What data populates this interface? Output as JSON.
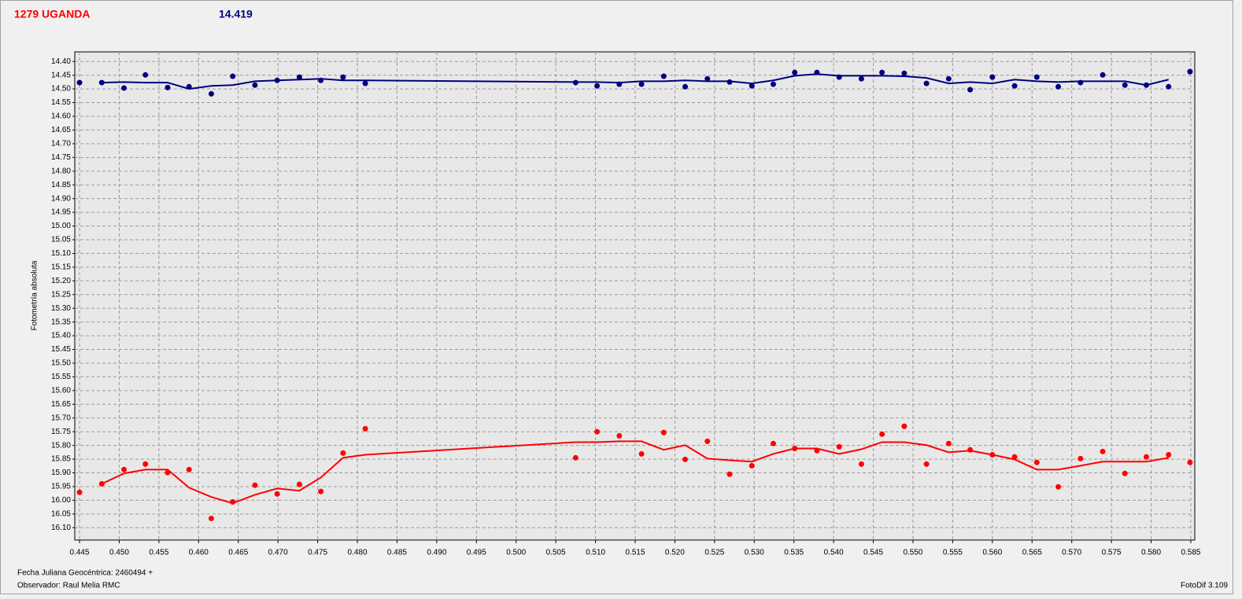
{
  "chart_data": {
    "type": "scatter",
    "title": "1279 UGANDA",
    "subtitle": "14.419",
    "y_label": "Fotometría absoluta",
    "x_label": "Fecha Juliana Geocéntrica: 2460494 +",
    "observer": "Observador: Raul Melia RMC",
    "software": "FotoDif 3.109",
    "y_inverted": true,
    "grid": true,
    "xlim": [
      0.4444,
      0.5855
    ],
    "ylim": [
      14.365,
      16.145
    ],
    "xticks": [
      0.445,
      {
        "value": 0.45,
        "label": "0.450"
      },
      0.455,
      {
        "value": 0.46,
        "label": "0.460"
      },
      0.465,
      {
        "value": 0.47,
        "label": "0.470"
      },
      0.475,
      {
        "value": 0.48,
        "label": "0.480"
      },
      0.485,
      {
        "value": 0.49,
        "label": "0.490"
      },
      0.495,
      {
        "value": 0.5,
        "label": "0.500"
      },
      0.505,
      {
        "value": 0.51,
        "label": "0.510"
      },
      0.515,
      {
        "value": 0.52,
        "label": "0.520"
      },
      0.525,
      {
        "value": 0.53,
        "label": "0.530"
      },
      0.535,
      {
        "value": 0.54,
        "label": "0.540"
      },
      0.545,
      {
        "value": 0.55,
        "label": "0.550"
      },
      0.555,
      {
        "value": 0.56,
        "label": "0.560"
      },
      0.565,
      {
        "value": 0.57,
        "label": "0.570"
      },
      0.575,
      {
        "value": 0.58,
        "label": "0.580"
      },
      0.585
    ],
    "yticks": [
      {
        "value": 14.4,
        "label": "14.40"
      },
      14.45,
      {
        "value": 14.5,
        "label": "14.50"
      },
      14.55,
      {
        "value": 14.6,
        "label": "14.60"
      },
      14.65,
      {
        "value": 14.7,
        "label": "14.70"
      },
      14.75,
      {
        "value": 14.8,
        "label": "14.80"
      },
      14.85,
      {
        "value": 14.9,
        "label": "14.90"
      },
      14.95,
      {
        "value": 15.0,
        "label": "15.00"
      },
      15.05,
      {
        "value": 15.1,
        "label": "15.10"
      },
      15.15,
      {
        "value": 15.2,
        "label": "15.20"
      },
      15.25,
      {
        "value": 15.3,
        "label": "15.30"
      },
      15.35,
      {
        "value": 15.4,
        "label": "15.40"
      },
      15.45,
      {
        "value": 15.5,
        "label": "15.50"
      },
      15.55,
      {
        "value": 15.6,
        "label": "15.60"
      },
      15.65,
      {
        "value": 15.7,
        "label": "15.70"
      },
      15.75,
      {
        "value": 15.8,
        "label": "15.80"
      },
      15.85,
      {
        "value": 15.9,
        "label": "15.90"
      },
      15.95,
      {
        "value": 16.0,
        "label": "16.00"
      },
      16.05,
      {
        "value": 16.1,
        "label": "16.10"
      }
    ],
    "x": [
      0.445,
      0.4478,
      0.4506,
      0.4533,
      0.4561,
      0.4588,
      0.4616,
      0.4643,
      0.4671,
      0.4699,
      0.4727,
      0.4754,
      0.4782,
      0.481,
      0.5075,
      0.5102,
      0.513,
      0.5158,
      0.5186,
      0.5213,
      0.5241,
      0.5269,
      0.5297,
      0.5324,
      0.5351,
      0.5379,
      0.5407,
      0.5435,
      0.5461,
      0.5489,
      0.5517,
      0.5545,
      0.5572,
      0.56,
      0.5628,
      0.5656,
      0.5683,
      0.5711,
      0.5739,
      0.5767,
      0.5794,
      0.5822,
      0.5849
    ],
    "series": [
      {
        "color": "#000080",
        "values": [
          14.477,
          14.477,
          14.497,
          14.449,
          14.495,
          14.492,
          14.518,
          14.454,
          14.486,
          14.469,
          14.457,
          14.469,
          14.457,
          14.48,
          14.477,
          14.489,
          14.483,
          14.483,
          14.454,
          14.492,
          14.463,
          14.475,
          14.489,
          14.483,
          14.44,
          14.44,
          14.457,
          14.463,
          14.44,
          14.443,
          14.48,
          14.463,
          14.503,
          14.457,
          14.489,
          14.457,
          14.492,
          14.477,
          14.449,
          14.486,
          14.486,
          14.492,
          14.437
        ],
        "smooth": [
          null,
          14.477,
          14.475,
          14.477,
          14.477,
          14.5,
          14.489,
          14.486,
          14.472,
          14.469,
          14.466,
          14.463,
          14.469,
          14.469,
          14.475,
          14.475,
          14.477,
          14.472,
          14.472,
          14.469,
          14.472,
          14.472,
          14.48,
          14.469,
          14.452,
          14.446,
          14.452,
          14.452,
          14.452,
          14.454,
          14.46,
          14.48,
          14.475,
          14.48,
          14.466,
          14.472,
          14.475,
          14.472,
          14.472,
          14.472,
          14.486,
          14.466,
          null
        ]
      },
      {
        "color": "#ff0000",
        "values": [
          15.971,
          15.94,
          15.888,
          15.868,
          15.899,
          15.888,
          16.066,
          16.006,
          15.945,
          15.977,
          15.942,
          15.968,
          15.828,
          15.739,
          15.845,
          15.75,
          15.765,
          15.831,
          15.753,
          15.851,
          15.785,
          15.905,
          15.874,
          15.793,
          15.811,
          15.819,
          15.805,
          15.868,
          15.759,
          15.73,
          15.868,
          15.793,
          15.816,
          15.834,
          15.842,
          15.862,
          15.951,
          15.848,
          15.822,
          15.902,
          15.842,
          15.834,
          15.862
        ],
        "smooth": [
          null,
          15.94,
          15.902,
          15.888,
          15.888,
          15.954,
          15.988,
          16.011,
          15.98,
          15.957,
          15.965,
          15.917,
          15.845,
          15.834,
          15.788,
          15.788,
          15.785,
          15.785,
          15.816,
          15.799,
          15.848,
          15.854,
          15.859,
          15.831,
          15.811,
          15.811,
          15.831,
          15.814,
          15.788,
          15.788,
          15.799,
          15.825,
          15.819,
          15.834,
          15.851,
          15.888,
          15.888,
          15.874,
          15.859,
          15.859,
          15.859,
          15.845,
          null
        ]
      }
    ]
  }
}
